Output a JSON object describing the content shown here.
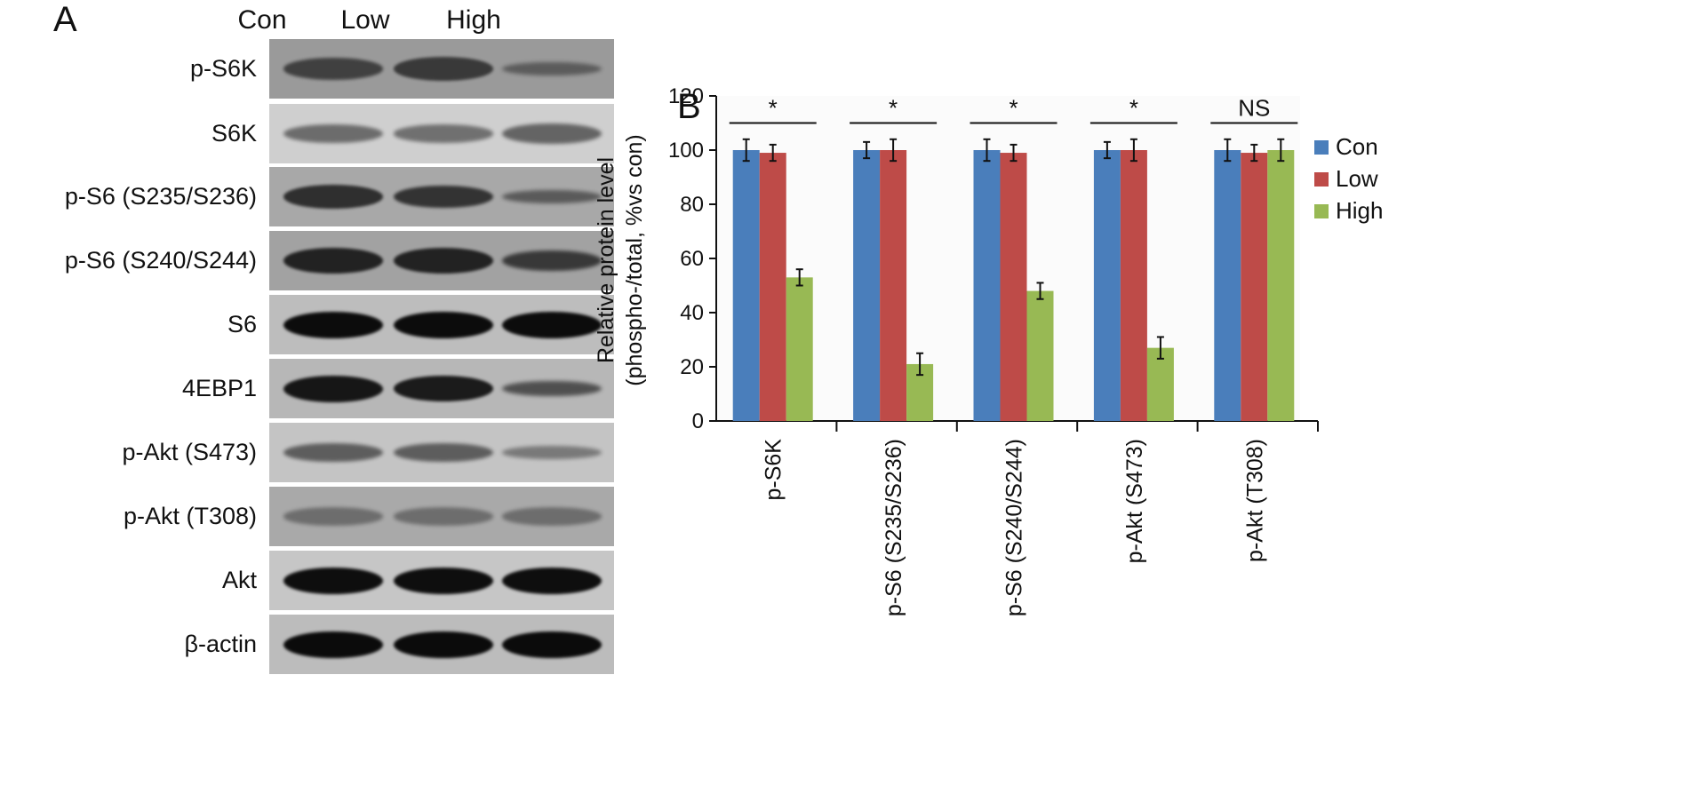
{
  "panel_a": {
    "letter": "A",
    "lanes": [
      "Con",
      "Low",
      "High"
    ],
    "blots": [
      {
        "label": "p-S6K",
        "bg": "#9a9a9a",
        "band": "#2f2f2f",
        "intensity": [
          0.75,
          0.85,
          0.35
        ]
      },
      {
        "label": "S6K",
        "bg": "#cfcfcf",
        "band": "#4a4a4a",
        "intensity": [
          0.6,
          0.55,
          0.7
        ]
      },
      {
        "label": "p-S6 (S235/S236)",
        "bg": "#a8a8a8",
        "band": "#222222",
        "intensity": [
          0.85,
          0.8,
          0.35
        ]
      },
      {
        "label": "p-S6 (S240/S244)",
        "bg": "#a2a2a2",
        "band": "#1e1e1e",
        "intensity": [
          0.95,
          0.95,
          0.7
        ]
      },
      {
        "label": "S6",
        "bg": "#bdbdbd",
        "band": "#0c0c0c",
        "intensity": [
          1.0,
          1.0,
          1.0
        ]
      },
      {
        "label": "4EBP1",
        "bg": "#b7b7b7",
        "band": "#161616",
        "intensity": [
          1.0,
          0.95,
          0.45
        ]
      },
      {
        "label": "p-Akt (S473)",
        "bg": "#c4c4c4",
        "band": "#3a3a3a",
        "intensity": [
          0.6,
          0.6,
          0.3
        ]
      },
      {
        "label": "p-Akt (T308)",
        "bg": "#a9a9a9",
        "band": "#555555",
        "intensity": [
          0.55,
          0.55,
          0.55
        ]
      },
      {
        "label": "Akt",
        "bg": "#c6c6c6",
        "band": "#0e0e0e",
        "intensity": [
          1.0,
          1.0,
          1.0
        ]
      },
      {
        "label": "β-actin",
        "bg": "#bcbcbc",
        "band": "#0b0b0b",
        "intensity": [
          1.0,
          1.0,
          1.0
        ]
      }
    ]
  },
  "panel_b": {
    "letter": "B"
  },
  "chart_data": {
    "type": "bar",
    "categories": [
      "p-S6K",
      "p-S6 (S235/S236)",
      "p-S6 (S240/S244)",
      "p-Akt (S473)",
      "p-Akt (T308)"
    ],
    "series": [
      {
        "name": "Con",
        "color": "#4a7ebb",
        "values": [
          100,
          100,
          100,
          100,
          100
        ],
        "errors": [
          4,
          3,
          4,
          3,
          4
        ]
      },
      {
        "name": "Low",
        "color": "#be4b48",
        "values": [
          99,
          100,
          99,
          100,
          99
        ],
        "errors": [
          3,
          4,
          3,
          4,
          3
        ]
      },
      {
        "name": "High",
        "color": "#98b954",
        "values": [
          53,
          21,
          48,
          27,
          100
        ],
        "errors": [
          3,
          4,
          3,
          4,
          4
        ]
      }
    ],
    "significance": [
      "*",
      "*",
      "*",
      "*",
      "NS"
    ],
    "ylabel_lines": [
      "Relative protein level",
      "(phospho-/total, %vs con)"
    ],
    "ylim": [
      0,
      120
    ],
    "yticks": [
      0,
      20,
      40,
      60,
      80,
      100,
      120
    ],
    "legend_position": "right",
    "grid": false
  }
}
